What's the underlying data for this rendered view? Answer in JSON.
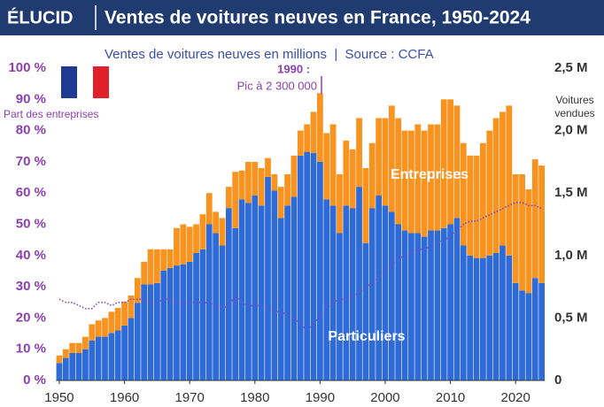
{
  "header": {
    "logo": "ÉLUCID"
  },
  "chart_data": {
    "type": "bar",
    "stacked": true,
    "title": "Ventes de voitures neuves en France, 1950-2024",
    "subtitle": "Ventes de voitures neuves en millions  |  Source : CCFA",
    "y2label": "Voitures vendues",
    "annotations": [
      "1990 :",
      "Pic à 2 300 000"
    ],
    "x": [
      1950,
      1951,
      1952,
      1953,
      1954,
      1955,
      1956,
      1957,
      1958,
      1959,
      1960,
      1961,
      1962,
      1963,
      1964,
      1965,
      1966,
      1967,
      1968,
      1969,
      1970,
      1971,
      1972,
      1973,
      1974,
      1975,
      1976,
      1977,
      1978,
      1979,
      1980,
      1981,
      1982,
      1983,
      1984,
      1985,
      1986,
      1987,
      1988,
      1989,
      1990,
      1991,
      1992,
      1993,
      1994,
      1995,
      1996,
      1997,
      1998,
      1999,
      2000,
      2001,
      2002,
      2003,
      2004,
      2005,
      2006,
      2007,
      2008,
      2009,
      2010,
      2011,
      2012,
      2013,
      2014,
      2015,
      2016,
      2017,
      2018,
      2019,
      2020,
      2021,
      2022,
      2023,
      2024
    ],
    "xlim": [
      1949.5,
      2024.5
    ],
    "xticks": [
      1950,
      1960,
      1970,
      1980,
      1990,
      2000,
      2010,
      2020
    ],
    "ylim": [
      0,
      100
    ],
    "yticks": [
      {
        "value": 0,
        "label": "0 %"
      },
      {
        "value": 10,
        "label": "10 %"
      },
      {
        "value": 20,
        "label": "20 %"
      },
      {
        "value": 30,
        "label": "30 %"
      },
      {
        "value": 40,
        "label": "40 %"
      },
      {
        "value": 50,
        "label": "50 %"
      },
      {
        "value": 60,
        "label": "60 %"
      },
      {
        "value": 70,
        "label": "70 %"
      },
      {
        "value": 80,
        "label": "80 %"
      },
      {
        "value": 90,
        "label": "90 %"
      },
      {
        "value": 100,
        "label": "100 %"
      }
    ],
    "y2lim": [
      0,
      2.5
    ],
    "y2ticks": [
      0,
      {
        "value": 0.5,
        "label": "0,5 M"
      },
      {
        "value": 1,
        "label": "1,0 M"
      },
      {
        "value": 1.5,
        "label": "1,5 M"
      },
      {
        "value": 2,
        "label": "2,0 M"
      },
      {
        "value": 2.5,
        "label": "2,5 M"
      }
    ],
    "series": [
      {
        "name": "Particuliers",
        "color": "#2e6bd6",
        "axis": "y2",
        "values": [
          0.14,
          0.18,
          0.22,
          0.22,
          0.25,
          0.32,
          0.35,
          0.35,
          0.38,
          0.4,
          0.44,
          0.5,
          0.62,
          0.77,
          0.77,
          0.78,
          0.88,
          0.9,
          0.92,
          0.93,
          0.95,
          1.02,
          1.05,
          1.25,
          1.18,
          1.08,
          1.38,
          1.22,
          1.45,
          1.42,
          1.48,
          1.4,
          1.63,
          1.52,
          1.3,
          1.4,
          1.47,
          1.8,
          1.83,
          1.82,
          1.75,
          1.45,
          1.4,
          1.18,
          1.4,
          1.38,
          1.55,
          1.1,
          1.38,
          1.48,
          1.4,
          1.35,
          1.25,
          1.2,
          1.18,
          1.18,
          1.15,
          1.2,
          1.2,
          1.22,
          1.25,
          1.3,
          1.08,
          1.0,
          0.98,
          0.98,
          1.0,
          1.02,
          1.08,
          1.0,
          0.78,
          0.72,
          0.7,
          0.82,
          0.78
        ]
      },
      {
        "name": "Entreprises",
        "color": "#f7931e",
        "axis": "y2",
        "values": [
          0.06,
          0.07,
          0.08,
          0.08,
          0.1,
          0.13,
          0.13,
          0.15,
          0.17,
          0.18,
          0.19,
          0.18,
          0.2,
          0.18,
          0.28,
          0.27,
          0.17,
          0.15,
          0.3,
          0.32,
          0.28,
          0.23,
          0.28,
          0.25,
          0.17,
          0.22,
          0.17,
          0.45,
          0.23,
          0.33,
          0.27,
          0.3,
          0.15,
          0.13,
          0.25,
          0.25,
          0.33,
          0.2,
          0.22,
          0.33,
          0.55,
          0.53,
          0.65,
          0.47,
          0.52,
          0.47,
          0.55,
          0.6,
          0.52,
          0.62,
          0.7,
          0.85,
          0.85,
          0.8,
          0.82,
          0.87,
          0.85,
          0.85,
          0.85,
          1.03,
          1.0,
          0.9,
          0.82,
          0.8,
          0.82,
          0.92,
          1.0,
          1.08,
          1.07,
          1.2,
          0.87,
          0.93,
          0.83,
          0.95,
          0.94
        ]
      },
      {
        "name": "Part des entreprises",
        "type": "line",
        "color": "#7a4bd0",
        "axis": "y",
        "values": [
          26,
          25,
          25,
          24,
          23,
          23,
          25,
          25,
          24,
          25,
          25,
          26,
          26,
          26,
          25,
          25,
          26,
          26,
          25,
          25,
          25,
          25,
          25,
          25,
          24,
          23,
          24,
          27,
          25,
          24,
          24,
          24,
          23,
          22,
          22,
          21,
          20,
          18,
          16,
          18,
          21,
          23,
          25,
          26,
          26,
          27,
          28,
          30,
          31,
          33,
          35,
          37,
          39,
          40,
          41,
          42,
          42,
          43,
          44,
          45,
          46,
          48,
          50,
          51,
          51,
          52,
          53,
          54,
          55,
          56,
          57,
          57,
          56,
          56,
          55
        ]
      }
    ]
  }
}
